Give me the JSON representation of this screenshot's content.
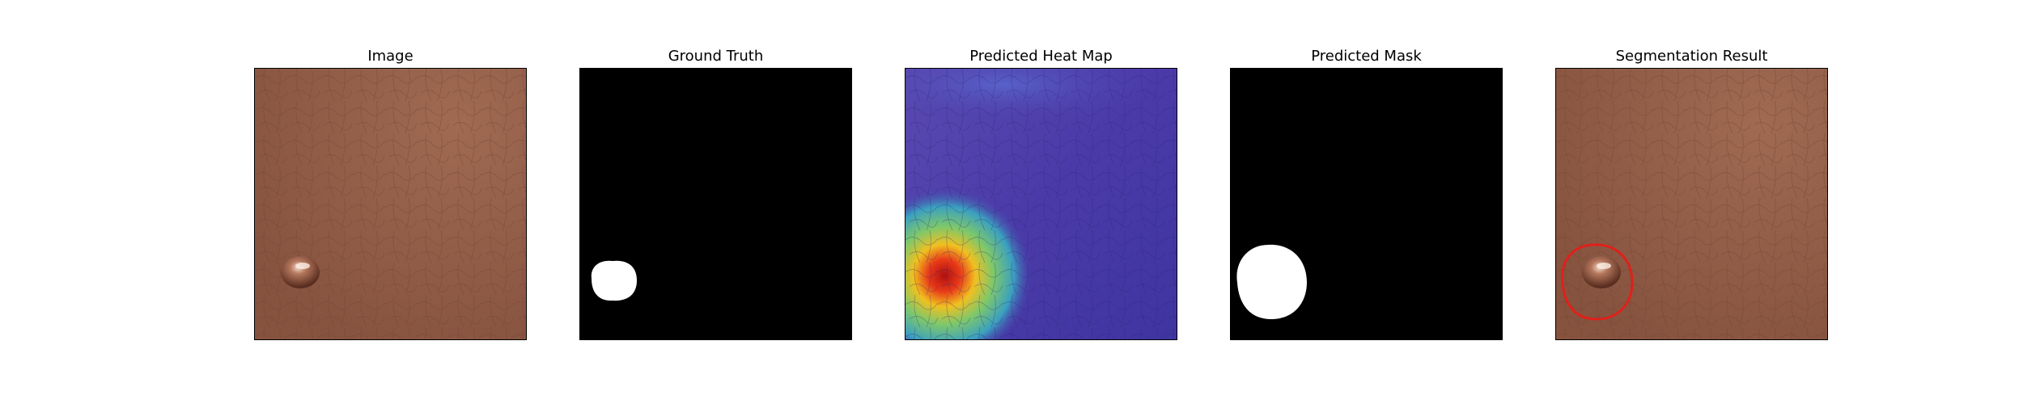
{
  "panels": [
    {
      "title": "Image",
      "kind": "image"
    },
    {
      "title": "Ground Truth",
      "kind": "mask"
    },
    {
      "title": "Predicted Heat Map",
      "kind": "heatmap"
    },
    {
      "title": "Predicted Mask",
      "kind": "mask"
    },
    {
      "title": "Segmentation Result",
      "kind": "overlay"
    }
  ],
  "colors": {
    "leather_base": "#8a5844",
    "leather_light": "#a0684f",
    "mask_background": "#000000",
    "mask_foreground": "#ffffff",
    "heatmap_cold": "#4a3aa8",
    "heatmap_hot": "#d8201a",
    "contour": "#e0201a"
  }
}
